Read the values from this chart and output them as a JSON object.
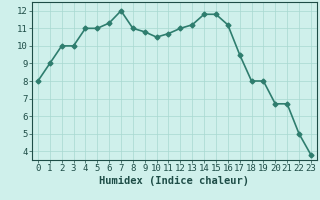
{
  "x": [
    0,
    1,
    2,
    3,
    4,
    5,
    6,
    7,
    8,
    9,
    10,
    11,
    12,
    13,
    14,
    15,
    16,
    17,
    18,
    19,
    20,
    21,
    22,
    23
  ],
  "y": [
    8.0,
    9.0,
    10.0,
    10.0,
    11.0,
    11.0,
    11.3,
    12.0,
    11.0,
    10.8,
    10.5,
    10.7,
    11.0,
    11.2,
    11.8,
    11.8,
    11.2,
    9.5,
    8.0,
    8.0,
    6.7,
    6.7,
    5.0,
    3.8
  ],
  "line_color": "#2e7d6e",
  "marker": "D",
  "marker_size": 2.5,
  "bg_color": "#cff0eb",
  "grid_color": "#a8d8d0",
  "xlabel": "Humidex (Indice chaleur)",
  "xlim": [
    -0.5,
    23.5
  ],
  "ylim": [
    3.5,
    12.5
  ],
  "yticks": [
    4,
    5,
    6,
    7,
    8,
    9,
    10,
    11,
    12
  ],
  "xticks": [
    0,
    1,
    2,
    3,
    4,
    5,
    6,
    7,
    8,
    9,
    10,
    11,
    12,
    13,
    14,
    15,
    16,
    17,
    18,
    19,
    20,
    21,
    22,
    23
  ],
  "tick_color": "#1e4d47",
  "axis_color": "#1e4d47",
  "xlabel_fontsize": 7.5,
  "tick_fontsize": 6.5,
  "linewidth": 1.2
}
